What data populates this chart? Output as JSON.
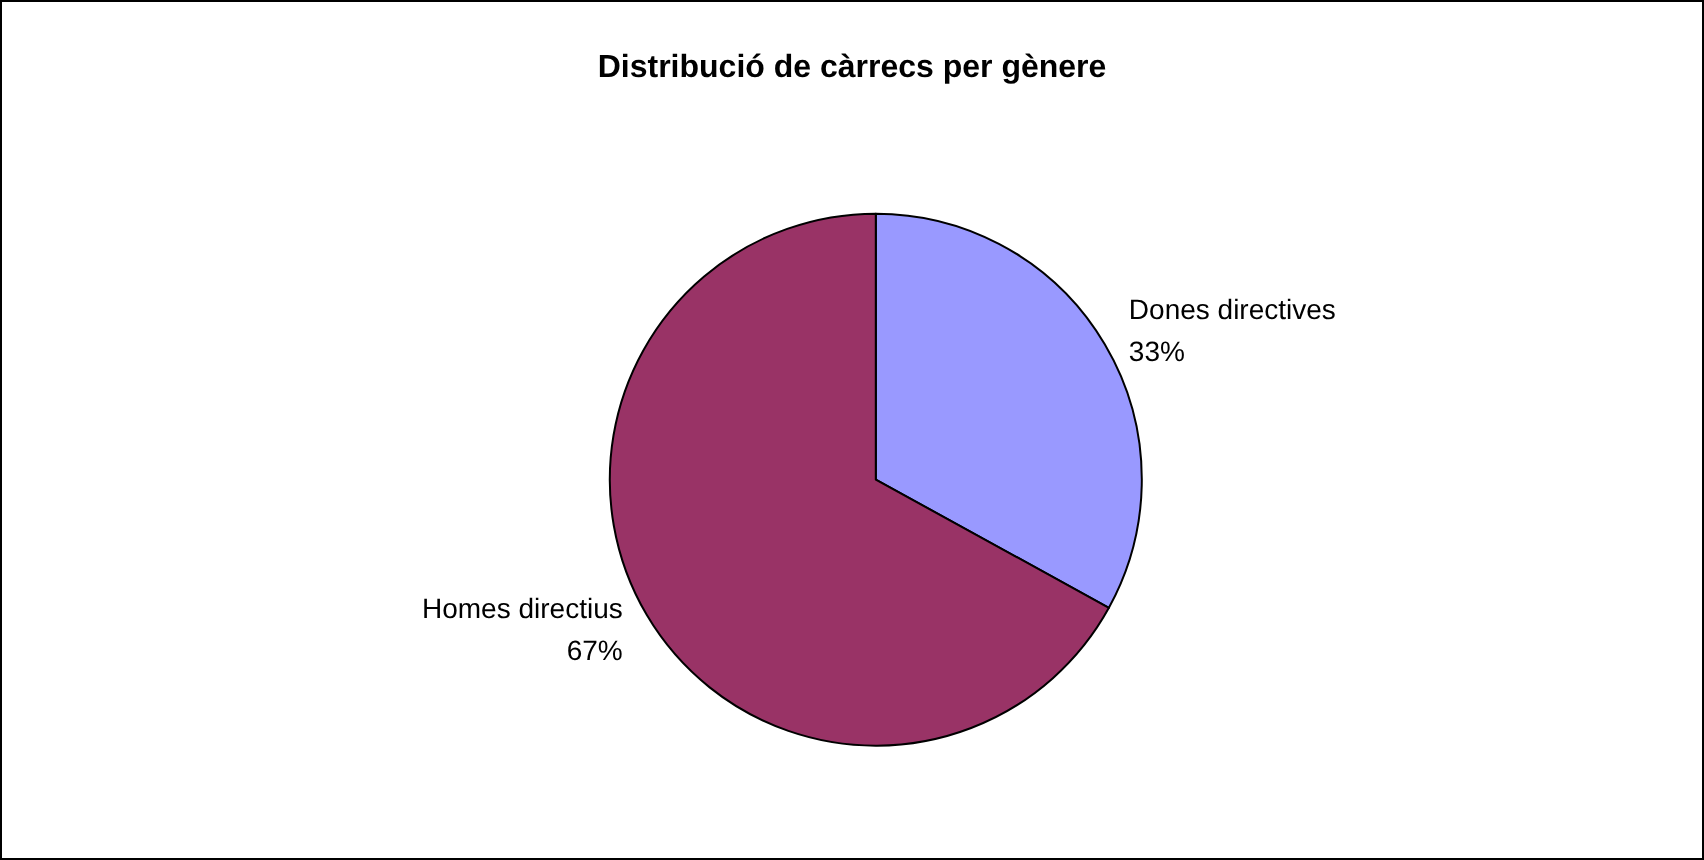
{
  "chart_data": {
    "type": "pie",
    "title": "Distribució de càrrecs per gènere",
    "categories": [
      "Dones directives",
      "Homes directius"
    ],
    "values": [
      33,
      67
    ],
    "colors": [
      "#9999ff",
      "#993366"
    ],
    "value_labels": [
      "33%",
      "67%"
    ],
    "legend": false
  }
}
